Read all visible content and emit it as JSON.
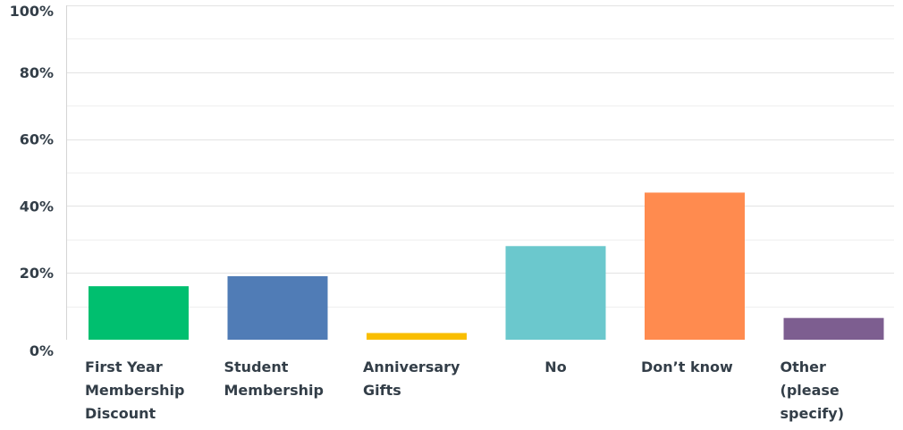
{
  "chart_data": {
    "type": "bar",
    "categories": [
      "First Year Membership Discount",
      "Student Membership",
      "Anniversary Gifts",
      "No",
      "Don’t know",
      "Other (please specify)"
    ],
    "category_label_lines": [
      [
        "First Year",
        "Membership",
        "Discount"
      ],
      [
        "Student",
        "Membership"
      ],
      [
        "Anniversary",
        "Gifts"
      ],
      [
        "No"
      ],
      [
        "Don’t know"
      ],
      [
        "Other",
        "(please",
        "specify)"
      ]
    ],
    "values": [
      16,
      19,
      2,
      28,
      44,
      6.5
    ],
    "colors": [
      "#00bf6f",
      "#507cb6",
      "#f9be00",
      "#6bc8cd",
      "#ff8b4f",
      "#7d5e90"
    ],
    "ylim": [
      0,
      100
    ],
    "yticks": [
      0,
      20,
      40,
      60,
      80,
      100
    ],
    "ytick_labels": [
      "0%",
      "20%",
      "40%",
      "60%",
      "80%",
      "100%"
    ],
    "minor_gridlines": [
      10,
      30,
      50,
      70,
      90
    ],
    "grid": true,
    "legend": "none",
    "title": "",
    "xlabel": "",
    "ylabel": ""
  }
}
